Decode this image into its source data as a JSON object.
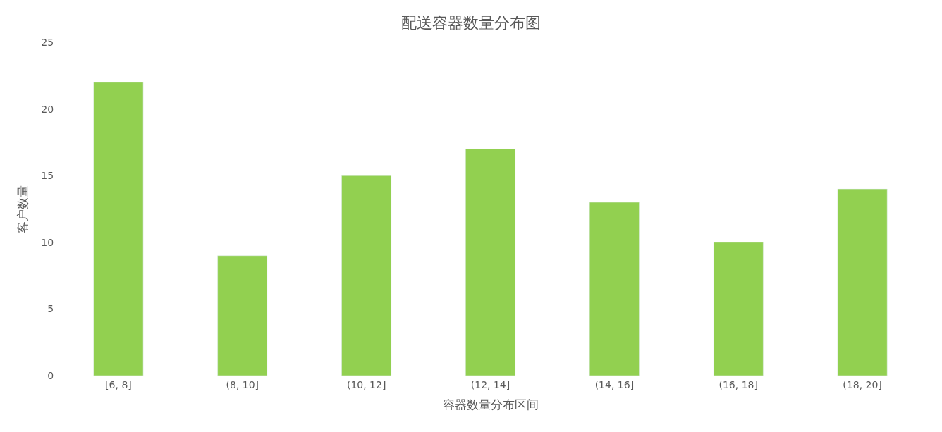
{
  "chart_data": {
    "type": "bar",
    "title": "配送容器数量分布图",
    "xlabel": "容器数量分布区间",
    "ylabel": "客户数量",
    "categories": [
      "[6, 8]",
      "(8, 10]",
      "(10, 12]",
      "(12, 14]",
      "(14, 16]",
      "(16, 18]",
      "(18, 20]"
    ],
    "values": [
      22,
      9,
      15,
      17,
      13,
      10,
      14
    ],
    "color": "#92d050",
    "ylim": [
      0,
      25
    ],
    "yticks": [
      0,
      5,
      10,
      15,
      20,
      25
    ]
  }
}
